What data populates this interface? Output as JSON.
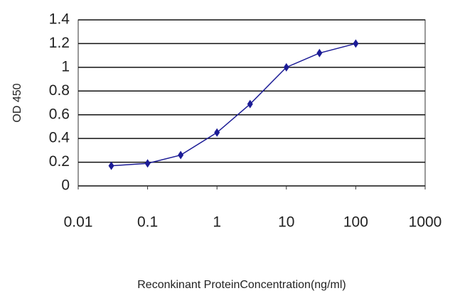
{
  "chart_data": {
    "type": "line",
    "xlabel": "Reconkinant ProteinConcentration(ng/ml)",
    "ylabel": "OD 450",
    "xscale": "log",
    "x": [
      0.03,
      0.1,
      0.3,
      1,
      3,
      10,
      30,
      100
    ],
    "series": [
      {
        "color": "#1c1c96",
        "values": [
          0.17,
          0.19,
          0.26,
          0.45,
          0.69,
          1.0,
          1.12,
          1.2
        ]
      }
    ],
    "xlim": [
      0.01,
      1000
    ],
    "xticks": [
      0.01,
      0.1,
      1,
      10,
      100,
      1000
    ],
    "ylim": [
      0,
      1.4
    ],
    "yticks": [
      0,
      0.2,
      0.4,
      0.6,
      0.8,
      1,
      1.2,
      1.4
    ],
    "grid": true
  }
}
